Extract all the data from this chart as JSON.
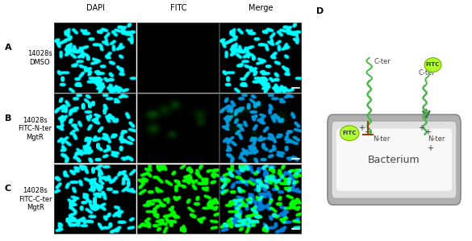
{
  "background_color": "#ffffff",
  "col_labels": [
    "DAPI",
    "FITC",
    "Merge"
  ],
  "row_labels": [
    "A",
    "B",
    "C"
  ],
  "row_sublabels": [
    "14028s\nDMSO",
    "14028s\nFITC-N-ter\nMgtR",
    "14028s\nFITC-C-ter\nMgtR"
  ],
  "col_label_fontsize": 7,
  "row_label_fontsize": 8,
  "sublabel_fontsize": 6,
  "bacterium_text": "Bacterium",
  "bacterium_fontsize": 9,
  "arrow_color": "#3a7d44",
  "inhibit_color": "#8B4513",
  "fitc_blob_color": "#ADFF2F",
  "helix_color": "#4db84a"
}
